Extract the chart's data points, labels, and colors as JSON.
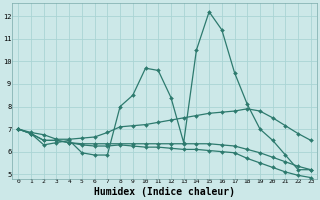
{
  "bg_color": "#cce8e8",
  "grid_color": "#aad4d4",
  "line_color": "#2d7a6e",
  "line_width": 0.9,
  "marker": "D",
  "marker_size": 2.0,
  "xlabel": "Humidex (Indice chaleur)",
  "xlabel_fontsize": 7,
  "xlim": [
    -0.5,
    23.5
  ],
  "ylim": [
    4.8,
    12.6
  ],
  "yticks": [
    5,
    6,
    7,
    8,
    9,
    10,
    11,
    12
  ],
  "xticks": [
    0,
    1,
    2,
    3,
    4,
    5,
    6,
    7,
    8,
    9,
    10,
    11,
    12,
    13,
    14,
    15,
    16,
    17,
    18,
    19,
    20,
    21,
    22,
    23
  ],
  "line1_y": [
    7.0,
    6.8,
    6.3,
    6.4,
    6.5,
    5.95,
    5.85,
    5.85,
    8.0,
    8.5,
    9.7,
    9.6,
    8.4,
    6.4,
    10.5,
    12.2,
    11.4,
    9.5,
    8.1,
    7.0,
    6.5,
    5.85,
    5.2,
    5.2
  ],
  "line2_y": [
    7.0,
    6.85,
    6.75,
    6.55,
    6.55,
    6.6,
    6.65,
    6.85,
    7.1,
    7.15,
    7.2,
    7.3,
    7.4,
    7.5,
    7.6,
    7.7,
    7.75,
    7.8,
    7.9,
    7.8,
    7.5,
    7.15,
    6.8,
    6.5
  ],
  "line3_y": [
    7.0,
    6.8,
    6.5,
    6.5,
    6.4,
    6.35,
    6.35,
    6.35,
    6.35,
    6.35,
    6.35,
    6.35,
    6.35,
    6.35,
    6.35,
    6.35,
    6.3,
    6.25,
    6.1,
    5.95,
    5.75,
    5.55,
    5.35,
    5.2
  ],
  "line4_y": [
    7.0,
    6.8,
    6.5,
    6.5,
    6.4,
    6.3,
    6.25,
    6.25,
    6.3,
    6.25,
    6.2,
    6.2,
    6.15,
    6.1,
    6.1,
    6.05,
    6.0,
    5.95,
    5.7,
    5.5,
    5.3,
    5.1,
    4.95,
    4.85
  ]
}
